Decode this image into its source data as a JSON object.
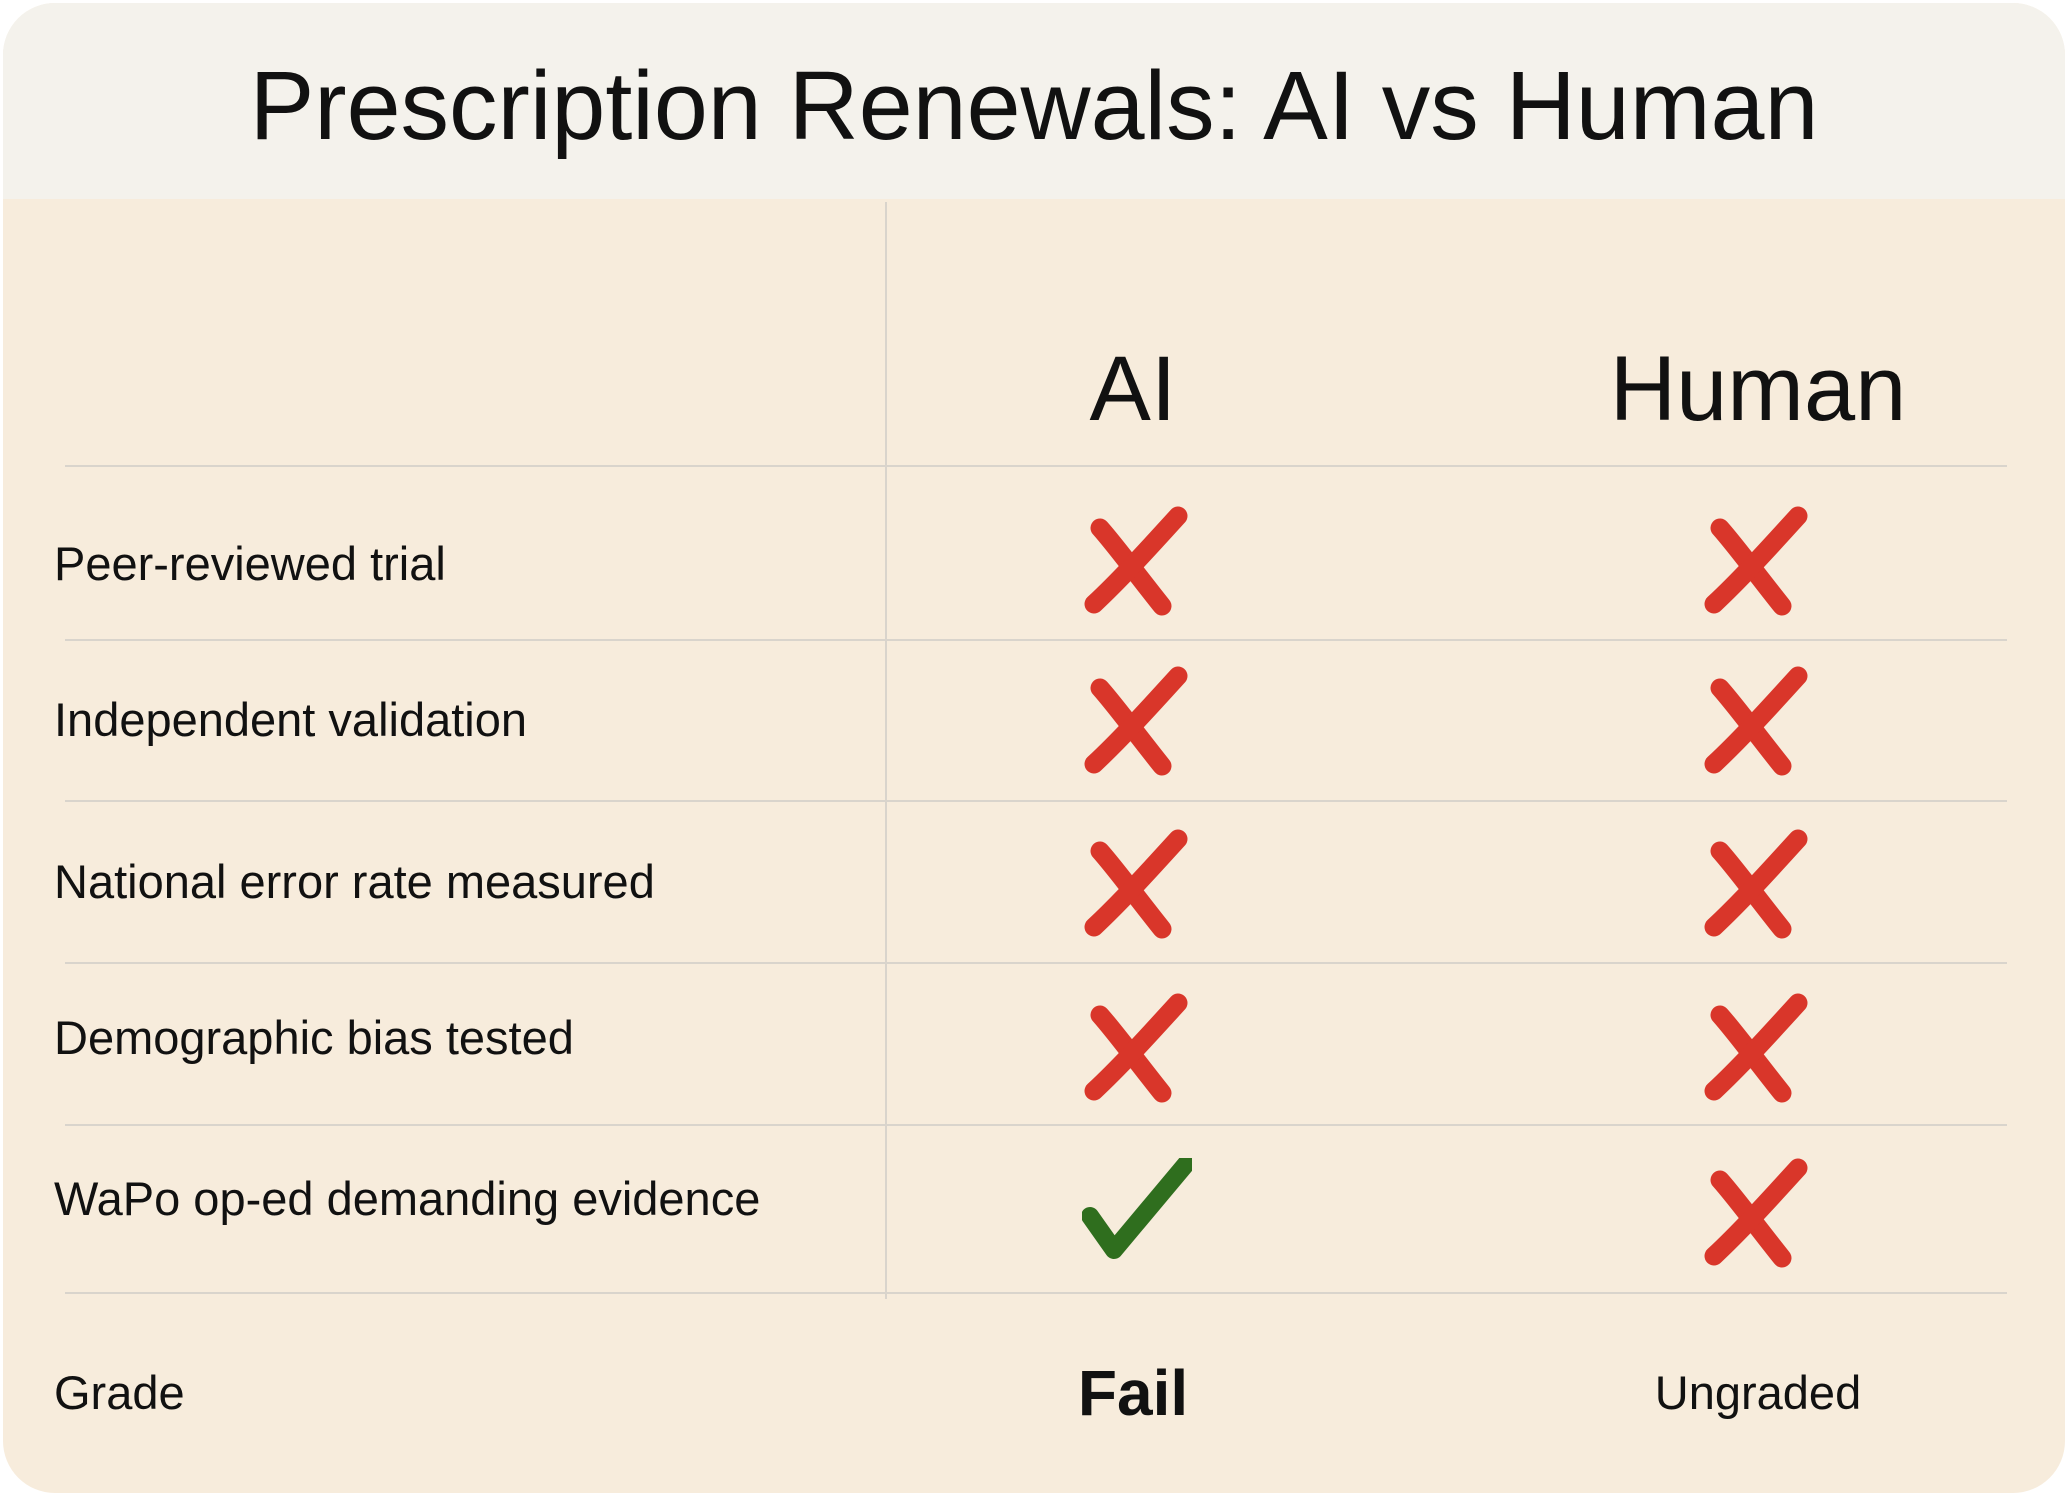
{
  "title": "Prescription Renewals: AI vs Human",
  "columns": [
    "AI",
    "Human"
  ],
  "criteria": [
    {
      "label": "Peer-reviewed trial",
      "ai": "fail",
      "human": "fail"
    },
    {
      "label": "Independent validation",
      "ai": "fail",
      "human": "fail"
    },
    {
      "label": "National error rate measured",
      "ai": "fail",
      "human": "fail"
    },
    {
      "label": "Demographic bias tested",
      "ai": "fail",
      "human": "fail"
    },
    {
      "label": "WaPo op-ed demanding evidence",
      "ai": "pass",
      "human": "fail"
    }
  ],
  "grade": {
    "label": "Grade",
    "ai": "Fail",
    "human": "Ungraded"
  },
  "icons": {
    "pass": "check-mark-icon",
    "fail": "cross-mark-icon"
  },
  "colors": {
    "background": "#f7ecdc",
    "header": "#f4f2ec",
    "cross": "#d9362a",
    "check": "#2f6e1e",
    "divider": "#d9d4cc"
  }
}
